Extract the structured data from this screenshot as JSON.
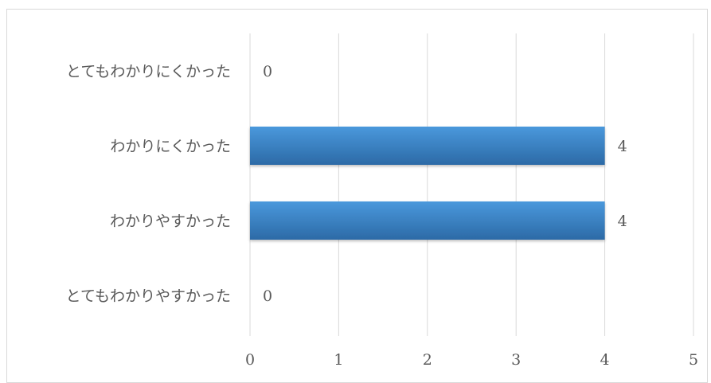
{
  "chart_data": {
    "type": "bar",
    "orientation": "horizontal",
    "title": "",
    "xlabel": "",
    "ylabel": "",
    "categories": [
      "とてもわかりにくかった",
      "わかりにくかった",
      "わかりやすかった",
      "とてもわかりやすかった"
    ],
    "values": [
      0,
      4,
      4,
      0
    ],
    "data_labels": [
      "0",
      "4",
      "4",
      "0"
    ],
    "xlim": [
      0,
      5
    ],
    "x_ticks": [
      "0",
      "1",
      "2",
      "3",
      "4",
      "5"
    ],
    "grid": true,
    "legend": "none",
    "bar_color_top": "#4a98dc",
    "bar_color_bottom": "#2c6aa6",
    "grid_color": "#d9d9d9",
    "text_color": "#595959"
  }
}
